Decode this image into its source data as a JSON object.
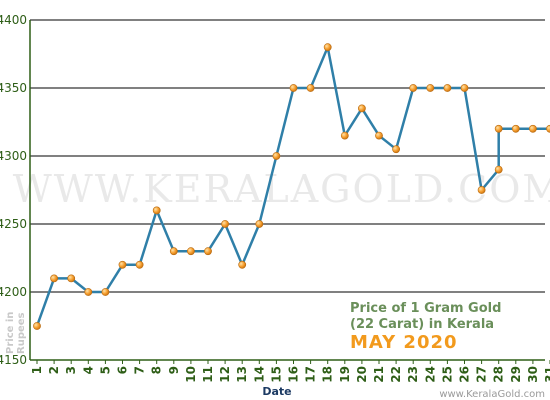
{
  "chart_data": {
    "type": "line",
    "title_line1": "Price of 1 Gram Gold",
    "title_line2": "(22 Carat) in Kerala",
    "title_month": "MAY 2020",
    "xlabel": "Date",
    "ylabel_line1": "Price in",
    "ylabel_line2": "Rupees",
    "watermark": "WWW.KERALAGOLD.COM",
    "footer": "www.KeralaGold.com",
    "ylim": [
      4150,
      4400
    ],
    "yticks": [
      4150,
      4200,
      4250,
      4300,
      4350,
      4400
    ],
    "categories": [
      "1",
      "2",
      "3",
      "4",
      "5",
      "6",
      "7",
      "8",
      "9",
      "10",
      "11",
      "12",
      "13",
      "14",
      "15",
      "16",
      "17",
      "18",
      "19",
      "20",
      "21",
      "22",
      "23",
      "24",
      "25",
      "26",
      "27",
      "28",
      "29",
      "30",
      "31"
    ],
    "x": [
      1,
      2,
      3,
      4,
      5,
      6,
      7,
      8,
      9,
      10,
      11,
      12,
      13,
      14,
      15,
      16,
      17,
      18,
      19,
      20,
      21,
      22,
      23,
      24,
      25,
      26,
      27,
      28,
      28,
      29,
      30,
      31
    ],
    "values": [
      4175,
      4210,
      4210,
      4200,
      4200,
      4220,
      4220,
      4260,
      4230,
      4230,
      4230,
      4250,
      4220,
      4250,
      4300,
      4350,
      4350,
      4380,
      4315,
      4335,
      4315,
      4305,
      4350,
      4350,
      4350,
      4350,
      4275,
      4290,
      4320,
      4320,
      4320,
      4320
    ],
    "grid": true,
    "line_color": "#2f7fa8",
    "marker_color": "#f7a030"
  }
}
